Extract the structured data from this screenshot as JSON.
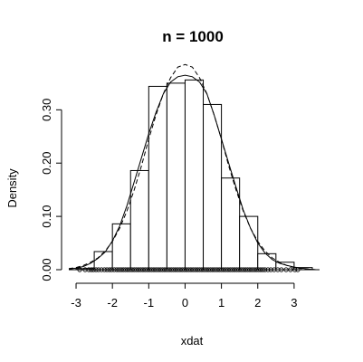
{
  "chart_data": {
    "type": "bar",
    "title": "n = 1000",
    "xlabel": "xdat",
    "ylabel": "Density",
    "xlim": [
      -3.2,
      3.7
    ],
    "ylim": [
      0,
      0.36
    ],
    "x_ticks": [
      -3,
      -2,
      -1,
      0,
      1,
      2,
      3
    ],
    "x_tick_labels": [
      "-3",
      "-2",
      "-1",
      "0",
      "1",
      "2",
      "3"
    ],
    "y_ticks": [
      0.0,
      0.1,
      0.2,
      0.3
    ],
    "y_tick_labels": [
      "0.00",
      "0.10",
      "0.20",
      "0.30"
    ],
    "grid": false,
    "histogram": {
      "bin_edges": [
        -3.0,
        -2.5,
        -2.0,
        -1.5,
        -1.0,
        -0.5,
        0.0,
        0.5,
        1.0,
        1.5,
        2.0,
        2.5,
        3.0,
        3.5
      ],
      "densities": [
        0.002,
        0.034,
        0.086,
        0.186,
        0.344,
        0.35,
        0.356,
        0.31,
        0.172,
        0.1,
        0.03,
        0.014,
        0.004
      ]
    },
    "series": [
      {
        "style": "solid",
        "x": [
          -3.2,
          -3.0,
          -2.8,
          -2.6,
          -2.4,
          -2.2,
          -2.0,
          -1.8,
          -1.6,
          -1.4,
          -1.2,
          -1.0,
          -0.8,
          -0.6,
          -0.4,
          -0.2,
          0.0,
          0.2,
          0.4,
          0.6,
          0.8,
          1.0,
          1.2,
          1.4,
          1.6,
          1.8,
          2.0,
          2.2,
          2.4,
          2.6,
          2.8,
          3.0,
          3.2,
          3.4,
          3.6
        ],
        "y": [
          0.001,
          0.003,
          0.006,
          0.012,
          0.021,
          0.033,
          0.054,
          0.082,
          0.12,
          0.165,
          0.21,
          0.255,
          0.295,
          0.33,
          0.352,
          0.362,
          0.365,
          0.362,
          0.352,
          0.33,
          0.29,
          0.245,
          0.2,
          0.155,
          0.112,
          0.078,
          0.05,
          0.031,
          0.019,
          0.012,
          0.008,
          0.005,
          0.003,
          0.001,
          0.0
        ]
      },
      {
        "style": "dashed",
        "x": [
          -3.2,
          -3.0,
          -2.8,
          -2.6,
          -2.4,
          -2.2,
          -2.0,
          -1.8,
          -1.6,
          -1.4,
          -1.2,
          -1.0,
          -0.8,
          -0.6,
          -0.4,
          -0.2,
          0.0,
          0.2,
          0.4,
          0.6,
          0.8,
          1.0,
          1.2,
          1.4,
          1.6,
          1.8,
          2.0,
          2.2,
          2.4,
          2.6,
          2.8,
          3.0,
          3.2,
          3.4,
          3.6
        ],
        "y": [
          0.002,
          0.004,
          0.008,
          0.014,
          0.022,
          0.035,
          0.053,
          0.078,
          0.11,
          0.15,
          0.195,
          0.245,
          0.29,
          0.33,
          0.36,
          0.38,
          0.385,
          0.38,
          0.36,
          0.33,
          0.29,
          0.245,
          0.195,
          0.15,
          0.11,
          0.078,
          0.053,
          0.035,
          0.022,
          0.014,
          0.008,
          0.004,
          0.002,
          0.001,
          0.0
        ]
      }
    ],
    "rug": {
      "x": [
        -2.9,
        -2.75,
        -2.65,
        -2.58,
        -2.52,
        -2.45,
        -2.38,
        -2.3,
        -2.22,
        -2.15,
        -2.08,
        -2.02,
        -1.95,
        -1.88,
        -1.82,
        -1.76,
        -1.7,
        -1.64,
        -1.58,
        -1.52,
        -1.46,
        -1.4,
        -1.34,
        -1.28,
        -1.22,
        -1.16,
        -1.1,
        -1.04,
        -0.98,
        -0.92,
        -0.86,
        -0.8,
        -0.74,
        -0.68,
        -0.62,
        -0.56,
        -0.5,
        -0.44,
        -0.38,
        -0.32,
        -0.26,
        -0.2,
        -0.14,
        -0.08,
        -0.02,
        0.04,
        0.1,
        0.16,
        0.22,
        0.28,
        0.34,
        0.4,
        0.46,
        0.52,
        0.58,
        0.64,
        0.7,
        0.76,
        0.82,
        0.88,
        0.94,
        1.0,
        1.06,
        1.12,
        1.18,
        1.24,
        1.3,
        1.36,
        1.42,
        1.48,
        1.54,
        1.6,
        1.66,
        1.72,
        1.78,
        1.84,
        1.9,
        1.96,
        2.02,
        2.08,
        2.14,
        2.2,
        2.28,
        2.36,
        2.45,
        2.55,
        2.65,
        2.78,
        2.9,
        3.02,
        3.1
      ]
    }
  }
}
